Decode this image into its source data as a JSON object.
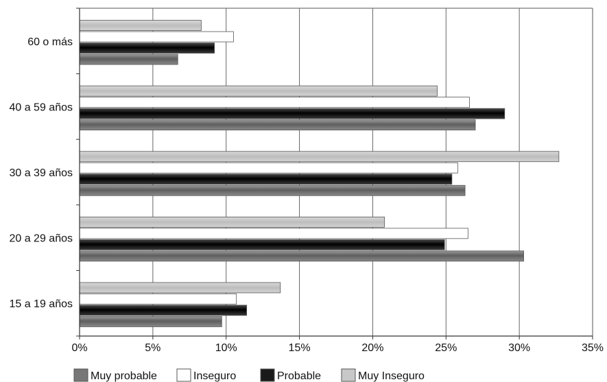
{
  "colors": {
    "Muy probable": "#777777",
    "Inseguro": "#ffffff",
    "Probable": "#1a1a1a",
    "Muy Inseguro": "#c8c8c8"
  },
  "chart_data": {
    "type": "bar",
    "orientation": "horizontal",
    "categories": [
      "15 a 19 años",
      "20 a 29 años",
      "30 a 39 años",
      "40 a 59 años",
      "60 o más"
    ],
    "series": [
      {
        "name": "Muy probable",
        "values": [
          9.7,
          30.3,
          26.3,
          27.0,
          6.7
        ]
      },
      {
        "name": "Probable",
        "values": [
          11.4,
          24.9,
          25.4,
          29.0,
          9.2
        ]
      },
      {
        "name": "Inseguro",
        "values": [
          10.7,
          26.5,
          25.8,
          26.6,
          10.5
        ]
      },
      {
        "name": "Muy Inseguro",
        "values": [
          13.7,
          20.8,
          32.7,
          24.4,
          8.3
        ]
      }
    ],
    "xlim": [
      0,
      35
    ],
    "xticks": [
      "0%",
      "5%",
      "10%",
      "15%",
      "20%",
      "25%",
      "30%",
      "35%"
    ],
    "grid": true,
    "legend_position": "bottom",
    "legend_order": [
      "Muy probable",
      "Inseguro",
      "Probable",
      "Muy Inseguro"
    ]
  }
}
